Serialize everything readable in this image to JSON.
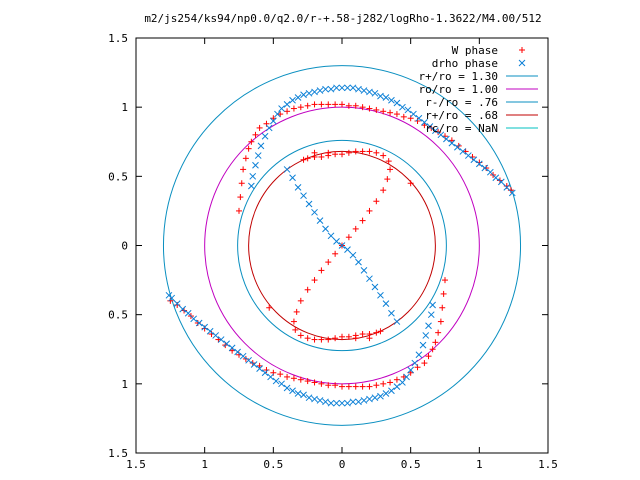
{
  "chart_data": {
    "type": "scatter",
    "title": "m2/js254/ks94/np0.0/q2.0/r-+.58-j282/logRho-1.3622/M4.00/512",
    "xlabel": "",
    "ylabel": "",
    "xlim": [
      -1.5,
      1.5
    ],
    "ylim": [
      -1.5,
      1.5
    ],
    "grid": false,
    "legend_position": "top-right",
    "x_ticks": [
      {
        "value": -1.5,
        "label": "1.5"
      },
      {
        "value": -1.0,
        "label": "1"
      },
      {
        "value": -0.5,
        "label": "0.5"
      },
      {
        "value": 0.0,
        "label": "0"
      },
      {
        "value": 0.5,
        "label": "0.5"
      },
      {
        "value": 1.0,
        "label": "1"
      },
      {
        "value": 1.5,
        "label": "1.5"
      }
    ],
    "y_ticks": [
      {
        "value": 1.5,
        "label": "1.5"
      },
      {
        "value": 1.0,
        "label": "1"
      },
      {
        "value": 0.5,
        "label": "0.5"
      },
      {
        "value": 0.0,
        "label": "0"
      },
      {
        "value": -0.5,
        "label": "0.5"
      },
      {
        "value": -1.0,
        "label": "1"
      },
      {
        "value": -1.5,
        "label": "1.5"
      }
    ],
    "legend": [
      {
        "label": "W phase",
        "kind": "plus",
        "color": "#ff0000"
      },
      {
        "label": "drho phase",
        "kind": "cross",
        "color": "#0a7fd6"
      },
      {
        "label": "r+/ro = 1.30",
        "kind": "line",
        "color": "#0a8fc0"
      },
      {
        "label": "ro/ro = 1.00",
        "kind": "line",
        "color": "#c000c0"
      },
      {
        "label": "r-/ro = .76",
        "kind": "line",
        "color": "#0a8fc0"
      },
      {
        "label": "r+/ro = .68",
        "kind": "line",
        "color": "#c00000"
      },
      {
        "label": "rc/ro = NaN",
        "kind": "line",
        "color": "#00c0c0"
      }
    ],
    "circles": [
      {
        "name": "r+/ro = 1.30",
        "r": 1.3,
        "color": "#0a8fc0"
      },
      {
        "name": "ro/ro = 1.00",
        "r": 1.0,
        "color": "#c000c0"
      },
      {
        "name": "r-/ro = .76",
        "r": 0.76,
        "color": "#0a8fc0"
      },
      {
        "name": "r+/ro = .68",
        "r": 0.68,
        "color": "#c00000"
      }
    ],
    "series": [
      {
        "name": "W phase",
        "marker": "plus",
        "color": "#ff0000",
        "x": [
          -0.75,
          -0.74,
          -0.73,
          -0.72,
          -0.7,
          -0.68,
          -0.66,
          -0.63,
          -0.6,
          -0.55,
          -0.5,
          -0.45,
          -0.4,
          -0.35,
          -0.3,
          -0.25,
          -0.2,
          -0.15,
          -0.1,
          -0.05,
          0.0,
          0.05,
          0.1,
          0.15,
          0.2,
          0.25,
          0.3,
          0.35,
          0.4,
          0.45,
          0.5,
          0.55,
          0.6,
          0.65,
          0.7,
          0.75,
          0.8,
          0.85,
          0.9,
          0.95,
          1.0,
          1.05,
          1.1,
          1.15,
          1.2,
          1.23,
          0.75,
          0.74,
          0.73,
          0.72,
          0.7,
          0.68,
          0.66,
          0.63,
          0.6,
          0.55,
          0.5,
          0.45,
          0.4,
          0.35,
          0.3,
          0.25,
          0.2,
          0.15,
          0.1,
          0.05,
          0.0,
          -0.05,
          -0.1,
          -0.15,
          -0.2,
          -0.25,
          -0.3,
          -0.35,
          -0.4,
          -0.45,
          -0.5,
          -0.55,
          -0.6,
          -0.65,
          -0.7,
          -0.75,
          -0.8,
          -0.85,
          -0.9,
          -0.95,
          -1.0,
          -1.05,
          -1.1,
          -1.15,
          -1.2,
          -1.25,
          0.0,
          0.05,
          0.1,
          0.15,
          0.2,
          0.25,
          0.3,
          0.33,
          0.35,
          0.34,
          0.3,
          0.25,
          0.2,
          0.15,
          0.1,
          0.05,
          0.0,
          -0.05,
          -0.1,
          -0.15,
          -0.2,
          -0.25,
          -0.28,
          -0.2,
          -0.1,
          0.0,
          -0.05,
          -0.1,
          -0.15,
          -0.2,
          -0.25,
          -0.3,
          -0.33,
          -0.35,
          -0.34,
          -0.3,
          -0.25,
          -0.2,
          -0.15,
          -0.1,
          -0.05,
          0.0,
          0.05,
          0.1,
          0.15,
          0.2,
          0.25,
          0.28,
          0.2,
          0.1,
          0.5,
          -0.53
        ],
        "y": [
          0.25,
          0.35,
          0.45,
          0.55,
          0.63,
          0.7,
          0.75,
          0.8,
          0.85,
          0.88,
          0.92,
          0.95,
          0.97,
          0.99,
          1.0,
          1.01,
          1.02,
          1.02,
          1.02,
          1.02,
          1.02,
          1.01,
          1.01,
          1.0,
          0.99,
          0.98,
          0.97,
          0.96,
          0.95,
          0.93,
          0.92,
          0.9,
          0.87,
          0.85,
          0.82,
          0.79,
          0.76,
          0.72,
          0.68,
          0.64,
          0.6,
          0.56,
          0.51,
          0.47,
          0.43,
          0.4,
          -0.25,
          -0.35,
          -0.45,
          -0.55,
          -0.63,
          -0.7,
          -0.75,
          -0.8,
          -0.85,
          -0.88,
          -0.92,
          -0.95,
          -0.97,
          -0.99,
          -1.0,
          -1.01,
          -1.02,
          -1.02,
          -1.02,
          -1.02,
          -1.02,
          -1.01,
          -1.01,
          -1.0,
          -0.99,
          -0.98,
          -0.97,
          -0.96,
          -0.95,
          -0.93,
          -0.92,
          -0.9,
          -0.87,
          -0.85,
          -0.82,
          -0.79,
          -0.76,
          -0.72,
          -0.68,
          -0.64,
          -0.6,
          -0.56,
          -0.51,
          -0.47,
          -0.43,
          -0.4,
          0.0,
          0.06,
          0.12,
          0.18,
          0.25,
          0.32,
          0.4,
          0.48,
          0.55,
          0.61,
          0.65,
          0.67,
          0.68,
          0.68,
          0.68,
          0.67,
          0.66,
          0.66,
          0.65,
          0.64,
          0.64,
          0.63,
          0.62,
          0.67,
          0.67,
          0.0,
          -0.06,
          -0.12,
          -0.18,
          -0.25,
          -0.32,
          -0.4,
          -0.48,
          -0.55,
          -0.61,
          -0.65,
          -0.67,
          -0.68,
          -0.68,
          -0.68,
          -0.67,
          -0.66,
          -0.66,
          -0.65,
          -0.64,
          -0.64,
          -0.63,
          -0.62,
          -0.67,
          -0.67,
          0.45,
          -0.45
        ]
      },
      {
        "name": "drho phase",
        "marker": "cross",
        "color": "#0a7fd6",
        "x": [
          -0.66,
          -0.65,
          -0.63,
          -0.61,
          -0.59,
          -0.56,
          -0.53,
          -0.5,
          -0.47,
          -0.44,
          -0.4,
          -0.36,
          -0.32,
          -0.28,
          -0.24,
          -0.2,
          -0.16,
          -0.12,
          -0.08,
          -0.04,
          0.0,
          0.04,
          0.08,
          0.12,
          0.16,
          0.2,
          0.24,
          0.28,
          0.32,
          0.36,
          0.4,
          0.44,
          0.48,
          0.52,
          0.56,
          0.6,
          0.64,
          0.68,
          0.72,
          0.76,
          0.8,
          0.84,
          0.88,
          0.92,
          0.96,
          1.0,
          1.04,
          1.08,
          1.12,
          1.16,
          1.2,
          1.24,
          0.66,
          0.65,
          0.63,
          0.61,
          0.59,
          0.56,
          0.53,
          0.5,
          0.47,
          0.44,
          0.4,
          0.36,
          0.32,
          0.28,
          0.24,
          0.2,
          0.16,
          0.12,
          0.08,
          0.04,
          0.0,
          -0.04,
          -0.08,
          -0.12,
          -0.16,
          -0.2,
          -0.24,
          -0.28,
          -0.32,
          -0.36,
          -0.4,
          -0.44,
          -0.48,
          -0.52,
          -0.56,
          -0.6,
          -0.64,
          -0.68,
          -0.72,
          -0.76,
          -0.8,
          -0.84,
          -0.88,
          -0.92,
          -0.96,
          -1.0,
          -1.04,
          -1.08,
          -1.12,
          -1.16,
          -1.2,
          -1.24,
          -1.26,
          -0.4,
          -0.36,
          -0.32,
          -0.28,
          -0.24,
          -0.2,
          -0.16,
          -0.12,
          -0.08,
          -0.04,
          0.0,
          0.04,
          0.08,
          0.12,
          0.16,
          0.2,
          0.24,
          0.28,
          0.32,
          0.36,
          0.4
        ],
        "y": [
          0.43,
          0.5,
          0.58,
          0.65,
          0.72,
          0.79,
          0.85,
          0.9,
          0.95,
          0.99,
          1.02,
          1.05,
          1.07,
          1.09,
          1.1,
          1.11,
          1.12,
          1.13,
          1.13,
          1.14,
          1.14,
          1.14,
          1.14,
          1.13,
          1.12,
          1.11,
          1.1,
          1.08,
          1.07,
          1.05,
          1.03,
          1.0,
          0.98,
          0.95,
          0.92,
          0.89,
          0.86,
          0.83,
          0.8,
          0.77,
          0.74,
          0.71,
          0.68,
          0.65,
          0.62,
          0.59,
          0.56,
          0.53,
          0.49,
          0.46,
          0.42,
          0.38,
          -0.43,
          -0.5,
          -0.58,
          -0.65,
          -0.72,
          -0.79,
          -0.85,
          -0.9,
          -0.95,
          -0.99,
          -1.02,
          -1.05,
          -1.07,
          -1.09,
          -1.1,
          -1.11,
          -1.12,
          -1.13,
          -1.13,
          -1.14,
          -1.14,
          -1.14,
          -1.14,
          -1.13,
          -1.12,
          -1.11,
          -1.1,
          -1.08,
          -1.07,
          -1.05,
          -1.03,
          -1.0,
          -0.98,
          -0.95,
          -0.92,
          -0.89,
          -0.86,
          -0.83,
          -0.8,
          -0.77,
          -0.74,
          -0.71,
          -0.68,
          -0.65,
          -0.62,
          -0.59,
          -0.56,
          -0.53,
          -0.49,
          -0.46,
          -0.42,
          -0.38,
          -0.36,
          0.55,
          0.49,
          0.42,
          0.36,
          0.3,
          0.24,
          0.18,
          0.12,
          0.07,
          0.03,
          0.0,
          -0.03,
          -0.07,
          -0.12,
          -0.18,
          -0.24,
          -0.3,
          -0.36,
          -0.42,
          -0.49,
          -0.55
        ]
      }
    ]
  }
}
